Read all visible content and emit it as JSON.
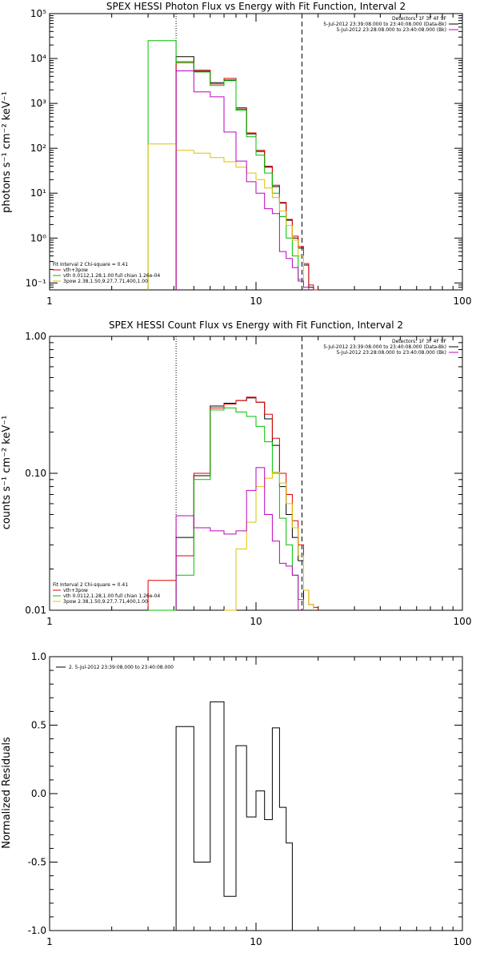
{
  "chart_data": [
    {
      "type": "line",
      "title": "SPEX HESSI Photon Flux vs Energy with Fit Function, Interval 2",
      "ylabel": "photons s⁻¹ cm⁻² keV⁻¹",
      "xlabel": "",
      "x_scale": "log",
      "y_scale": "log",
      "xlim": [
        1,
        100
      ],
      "ylim": [
        0.07,
        100000
      ],
      "x_ticks": [
        "1",
        "10",
        "100"
      ],
      "y_ticks": [
        {
          "v": 0.1,
          "label": "10⁻¹"
        },
        {
          "v": 1,
          "label": "10⁰"
        },
        {
          "v": 10,
          "label": "10¹"
        },
        {
          "v": 100,
          "label": "10²"
        },
        {
          "v": 1000,
          "label": "10³"
        },
        {
          "v": 10000,
          "label": "10⁴"
        },
        {
          "v": 100000,
          "label": "10⁵"
        }
      ],
      "vlines": [
        {
          "x": 4.1,
          "style": "dotted"
        },
        {
          "x": 16.7,
          "style": "dashed"
        }
      ],
      "legend_top_right": [
        {
          "text": "Detectors: 1F 3F 4F 9F",
          "color": ""
        },
        {
          "text": "5-Jul-2012 23:39:08.000 to 23:40:08.000 (Data-Bk)",
          "color": "#000000"
        },
        {
          "text": "5-Jul-2012 23:28:08.000 to 23:40:08.000 (Bk)",
          "color": "#c000c0"
        }
      ],
      "legend_bottom_left": [
        {
          "text": "Fit Interval 2   Chi-square = 0.41",
          "color": ""
        },
        {
          "text": "vth+3pow",
          "color": "#e00000"
        },
        {
          "text": "vth 0.0112,1.28,1.00  full chian 1.26e-04",
          "color": "#00c000"
        },
        {
          "text": "3pow 2.38,1.50,9.27,7.71,400,1.00",
          "color": "#e0c000"
        }
      ],
      "series": [
        {
          "name": "Data-Bk",
          "color": "#000000",
          "edges": [
            4.1,
            5.0,
            6.0,
            7.0,
            8.0,
            9.0,
            10.0,
            11.0,
            12.0,
            13.0,
            14.0,
            15.0,
            16.0,
            17.0,
            18.0,
            19.0,
            20.0
          ],
          "values": [
            11000,
            5200,
            2900,
            3300,
            750,
            210,
            85,
            38,
            14,
            6,
            2.5,
            1.0,
            0.6,
            0.25,
            0.08,
            0.06
          ]
        },
        {
          "name": "vth+3pow",
          "color": "#e00000",
          "edges": [
            4.1,
            5.0,
            6.0,
            7.0,
            8.0,
            9.0,
            10.0,
            11.0,
            12.0,
            13.0,
            14.0,
            15.0,
            16.0,
            17.0,
            18.0,
            19.0,
            20.0
          ],
          "values": [
            8500,
            5500,
            2700,
            3600,
            800,
            220,
            90,
            40,
            15,
            6.2,
            2.6,
            1.1,
            0.65,
            0.27,
            0.09,
            0.07
          ]
        },
        {
          "name": "vth",
          "color": "#00c000",
          "edges": [
            3.0,
            4.1,
            5.0,
            6.0,
            7.0,
            8.0,
            9.0,
            10.0,
            11.0,
            12.0,
            13.0,
            14.0,
            15.0,
            16.0,
            17.0
          ],
          "values": [
            25000,
            8000,
            5000,
            2500,
            3200,
            700,
            180,
            70,
            28,
            10,
            3,
            1,
            0.4,
            0.12
          ]
        },
        {
          "name": "3pow",
          "color": "#e0c000",
          "edges": [
            3.0,
            4.1,
            5.0,
            6.0,
            7.0,
            8.0,
            9.0,
            10.0,
            11.0,
            12.0,
            13.0,
            14.0,
            15.0,
            16.0,
            17.0
          ],
          "values": [
            125,
            90,
            78,
            62,
            50,
            38,
            28,
            20,
            13,
            8,
            4,
            1.9,
            0.9,
            0.4
          ]
        },
        {
          "name": "Bk",
          "color": "#c000c0",
          "edges": [
            4.1,
            5.0,
            6.0,
            7.0,
            8.0,
            9.0,
            10.0,
            11.0,
            12.0,
            13.0,
            14.0,
            15.0,
            16.0,
            17.0,
            18.0
          ],
          "values": [
            5300,
            1800,
            1400,
            230,
            52,
            18,
            10,
            4.5,
            3.5,
            0.5,
            0.35,
            0.22,
            0.11,
            0.08
          ]
        }
      ]
    },
    {
      "type": "line",
      "title": "SPEX HESSI Count Flux vs Energy with Fit Function, Interval 2",
      "ylabel": "counts s⁻¹ cm⁻² keV⁻¹",
      "xlabel": "",
      "x_scale": "log",
      "y_scale": "log",
      "xlim": [
        1,
        100
      ],
      "ylim": [
        0.01,
        1.0
      ],
      "x_ticks": [
        "1",
        "10",
        "100"
      ],
      "y_ticks": [
        {
          "v": 0.01,
          "label": "0.01"
        },
        {
          "v": 0.1,
          "label": "0.10"
        },
        {
          "v": 1.0,
          "label": "1.00"
        }
      ],
      "vlines": [
        {
          "x": 4.1,
          "style": "dotted"
        },
        {
          "x": 16.7,
          "style": "dashed"
        }
      ],
      "legend_top_right": [
        {
          "text": "Detectors: 1F 3F 4F 9F",
          "color": ""
        },
        {
          "text": "5-Jul-2012 23:39:08.000 to 23:40:08.000 (Data-Bk)",
          "color": "#000000"
        },
        {
          "text": "5-Jul-2012 23:28:08.000 to 23:40:08.000 (Bk)",
          "color": "#c000c0"
        }
      ],
      "legend_bottom_left": [
        {
          "text": "Fit Interval 2   Chi-square = 0.41",
          "color": ""
        },
        {
          "text": "vth+3pow",
          "color": "#e00000"
        },
        {
          "text": "vth 0.0112,1.28,1.00  full chian 1.26e-04",
          "color": "#00c000"
        },
        {
          "text": "3pow 2.38,1.50,9.27,7.71,400,1.00",
          "color": "#e0c000"
        }
      ],
      "series": [
        {
          "name": "Data-Bk",
          "color": "#000000",
          "edges": [
            4.1,
            5.0,
            6.0,
            7.0,
            8.0,
            9.0,
            10.0,
            11.0,
            12.0,
            13.0,
            14.0,
            15.0,
            16.0,
            17.0
          ],
          "values": [
            0.034,
            0.096,
            0.31,
            0.325,
            0.34,
            0.355,
            0.33,
            0.25,
            0.16,
            0.08,
            0.05,
            0.034,
            0.023
          ]
        },
        {
          "name": "vth+3pow",
          "color": "#e00000",
          "edges": [
            3.0,
            4.1,
            5.0,
            6.0,
            7.0,
            8.0,
            9.0,
            10.0,
            11.0,
            12.0,
            13.0,
            14.0,
            15.0,
            16.0,
            17.0,
            18.0,
            19.0,
            20.0
          ],
          "values": [
            0.0165,
            0.025,
            0.1,
            0.3,
            0.32,
            0.34,
            0.36,
            0.33,
            0.27,
            0.18,
            0.1,
            0.07,
            0.045,
            0.03,
            0.014,
            0.011,
            0.0105
          ]
        },
        {
          "name": "vth",
          "color": "#00c000",
          "edges": [
            3.0,
            4.1,
            5.0,
            6.0,
            7.0,
            8.0,
            9.0,
            10.0,
            11.0,
            12.0,
            13.0,
            14.0,
            15.0,
            16.0,
            17.0
          ],
          "values": [
            0.009,
            0.018,
            0.09,
            0.29,
            0.3,
            0.28,
            0.26,
            0.22,
            0.17,
            0.1,
            0.047,
            0.03,
            0.018,
            0.012
          ]
        },
        {
          "name": "3pow",
          "color": "#e0c000",
          "edges": [
            7.0,
            8.0,
            9.0,
            10.0,
            11.0,
            12.0,
            13.0,
            14.0,
            15.0,
            16.0,
            17.0,
            18.0,
            19.0
          ],
          "values": [
            0.009,
            0.028,
            0.044,
            0.08,
            0.092,
            0.102,
            0.085,
            0.06,
            0.04,
            0.025,
            0.014,
            0.011
          ]
        },
        {
          "name": "Bk",
          "color": "#c000c0",
          "edges": [
            4.1,
            5.0,
            6.0,
            7.0,
            8.0,
            9.0,
            10.0,
            11.0,
            12.0,
            13.0,
            14.0,
            15.0,
            16.0
          ],
          "values": [
            0.049,
            0.04,
            0.038,
            0.036,
            0.038,
            0.075,
            0.11,
            0.05,
            0.032,
            0.022,
            0.021,
            0.018
          ]
        }
      ]
    },
    {
      "type": "line",
      "title": "",
      "ylabel": "Normalized Residuals",
      "xlabel": "",
      "x_scale": "log",
      "y_scale": "linear",
      "xlim": [
        1,
        100
      ],
      "ylim": [
        -1.0,
        1.0
      ],
      "x_ticks": [
        "1",
        "10",
        "100"
      ],
      "y_ticks": [
        {
          "v": -1.0,
          "label": "-1.0"
        },
        {
          "v": -0.5,
          "label": "-0.5"
        },
        {
          "v": 0.0,
          "label": "0.0"
        },
        {
          "v": 0.5,
          "label": "0.5"
        },
        {
          "v": 1.0,
          "label": "1.0"
        }
      ],
      "vlines": [],
      "legend_top_left": [
        {
          "text": "2.  5-Jul-2012 23:39:08.000 to 23:40:08.000",
          "color": "#000000"
        }
      ],
      "series": [
        {
          "name": "",
          "color": "#000000",
          "edges": [
            4.1,
            5.0,
            6.0,
            7.0,
            8.0,
            9.0,
            10.0,
            11.0,
            12.0,
            13.0,
            14.0,
            15.0,
            16.0,
            17.0
          ],
          "values": [
            0.49,
            -0.5,
            0.67,
            -0.75,
            0.35,
            -0.17,
            0.02,
            -0.19,
            0.48,
            -0.1,
            -0.36,
            -1.0,
            -1.0
          ],
          "drop_to_floor": true
        }
      ]
    }
  ]
}
